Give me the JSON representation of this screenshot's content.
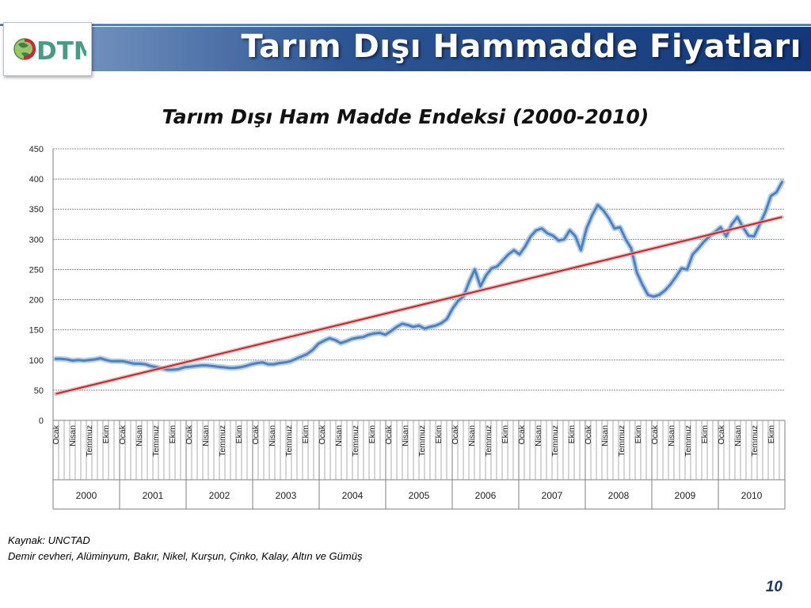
{
  "slide": {
    "title": "Tarım Dışı Hammadde Fiyatları",
    "logo_text": "DTM",
    "source": "Kaynak: UNCTAD",
    "note": "Demir cevheri, Alüminyum, Bakır, Nikel, Kurşun, Çinko, Kalay, Altın ve Gümüş",
    "page_number": "10"
  },
  "colors": {
    "banner": "#1a3f82",
    "series": "#4f81bd",
    "trend": "#c0282d",
    "grid": "#8c8c8c"
  },
  "chart_data": {
    "type": "line",
    "title": "Tarım Dışı Ham Madde Endeksi (2000-2010)",
    "xlabel": "",
    "ylabel": "",
    "ylim": [
      0,
      450
    ],
    "yticks": [
      0,
      50,
      100,
      150,
      200,
      250,
      300,
      350,
      400,
      450
    ],
    "grid": true,
    "legend": "none",
    "month_labels": [
      "Ocak",
      "Nisan",
      "Temmuz",
      "Ekim"
    ],
    "years": [
      "2000",
      "2001",
      "2002",
      "2003",
      "2004",
      "2005",
      "2006",
      "2007",
      "2008",
      "2009",
      "2010"
    ],
    "series": [
      {
        "values": [
          102,
          102,
          101,
          99,
          100,
          99,
          100,
          101,
          103,
          100,
          98,
          98,
          98,
          96,
          94,
          94,
          93,
          90,
          88,
          86,
          84,
          84,
          85,
          88,
          89,
          90,
          91,
          91,
          90,
          89,
          88,
          87,
          87,
          88,
          90,
          93,
          95,
          96,
          93,
          93,
          95,
          96,
          98,
          102,
          106,
          110,
          117,
          127,
          132,
          136,
          133,
          128,
          131,
          135,
          137,
          138,
          142,
          144,
          145,
          142,
          148,
          155,
          160,
          158,
          155,
          157,
          152,
          155,
          157,
          161,
          168,
          185,
          198,
          206,
          230,
          250,
          222,
          240,
          252,
          255,
          265,
          275,
          282,
          275,
          288,
          305,
          315,
          318,
          310,
          306,
          298,
          300,
          315,
          305,
          282,
          318,
          340,
          357,
          348,
          335,
          318,
          320,
          300,
          285,
          245,
          225,
          208,
          205,
          208,
          215,
          225,
          238,
          252,
          250,
          275,
          285,
          296,
          305,
          312,
          320,
          305,
          325,
          337,
          320,
          306,
          305,
          325,
          345,
          372,
          378,
          395
        ]
      },
      {
        "values": [
          44,
          337
        ]
      }
    ]
  }
}
